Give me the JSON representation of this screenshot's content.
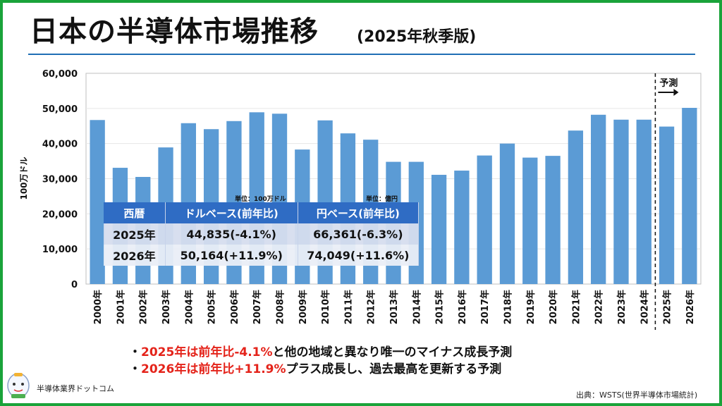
{
  "title": {
    "main": "日本の半導体市場推移",
    "sub": "(2025年秋季版)"
  },
  "chart_data": {
    "type": "bar",
    "ylabel": "100万ドル",
    "ylim": [
      0,
      60000
    ],
    "yticks": [
      0,
      10000,
      20000,
      30000,
      40000,
      50000,
      60000
    ],
    "ytick_labels": [
      "0",
      "10,000",
      "20,000",
      "30,000",
      "40,000",
      "50,000",
      "60,000"
    ],
    "categories": [
      "2000年",
      "2001年",
      "2002年",
      "2003年",
      "2004年",
      "2005年",
      "2006年",
      "2007年",
      "2008年",
      "2009年",
      "2010年",
      "2011年",
      "2012年",
      "2013年",
      "2014年",
      "2015年",
      "2016年",
      "2017年",
      "2018年",
      "2019年",
      "2020年",
      "2021年",
      "2022年",
      "2023年",
      "2024年",
      "2025年",
      "2026年"
    ],
    "values": [
      46700,
      33100,
      30500,
      38900,
      45800,
      44100,
      46400,
      48900,
      48500,
      38300,
      46600,
      42900,
      41100,
      34800,
      34800,
      31100,
      32300,
      36600,
      40000,
      36000,
      36500,
      43700,
      48200,
      46800,
      46800,
      44835,
      50164
    ],
    "bar_color": "#5b9bd5",
    "forecast_label": "予測",
    "forecast_start": "2025年"
  },
  "table": {
    "unit_left": "単位：100万ドル",
    "unit_right": "単位：億円",
    "headers": [
      "西暦",
      "ドルベース(前年比)",
      "円ベース(前年比)"
    ],
    "rows": [
      [
        "2025年",
        "44,835(-4.1%)",
        "66,361(-6.3%)"
      ],
      [
        "2026年",
        "50,164(+11.9%)",
        "74,049(+11.6%)"
      ]
    ]
  },
  "bullets": [
    {
      "marker": "・",
      "highlight": "2025年は前年比-4.1%",
      "rest": "と他の地域と異なり唯一のマイナス成長予測"
    },
    {
      "marker": "・",
      "highlight": "2026年は前年比+11.9%",
      "rest": "プラス成長し、過去最高を更新する予測"
    }
  ],
  "footer": {
    "brand": "半導体業界ドットコム",
    "source": "出典：WSTS(世界半導体市場統計)"
  },
  "colors": {
    "frame": "#1aa33a",
    "header_blue": "#2f6cc4",
    "highlight_red": "#e4231a"
  }
}
